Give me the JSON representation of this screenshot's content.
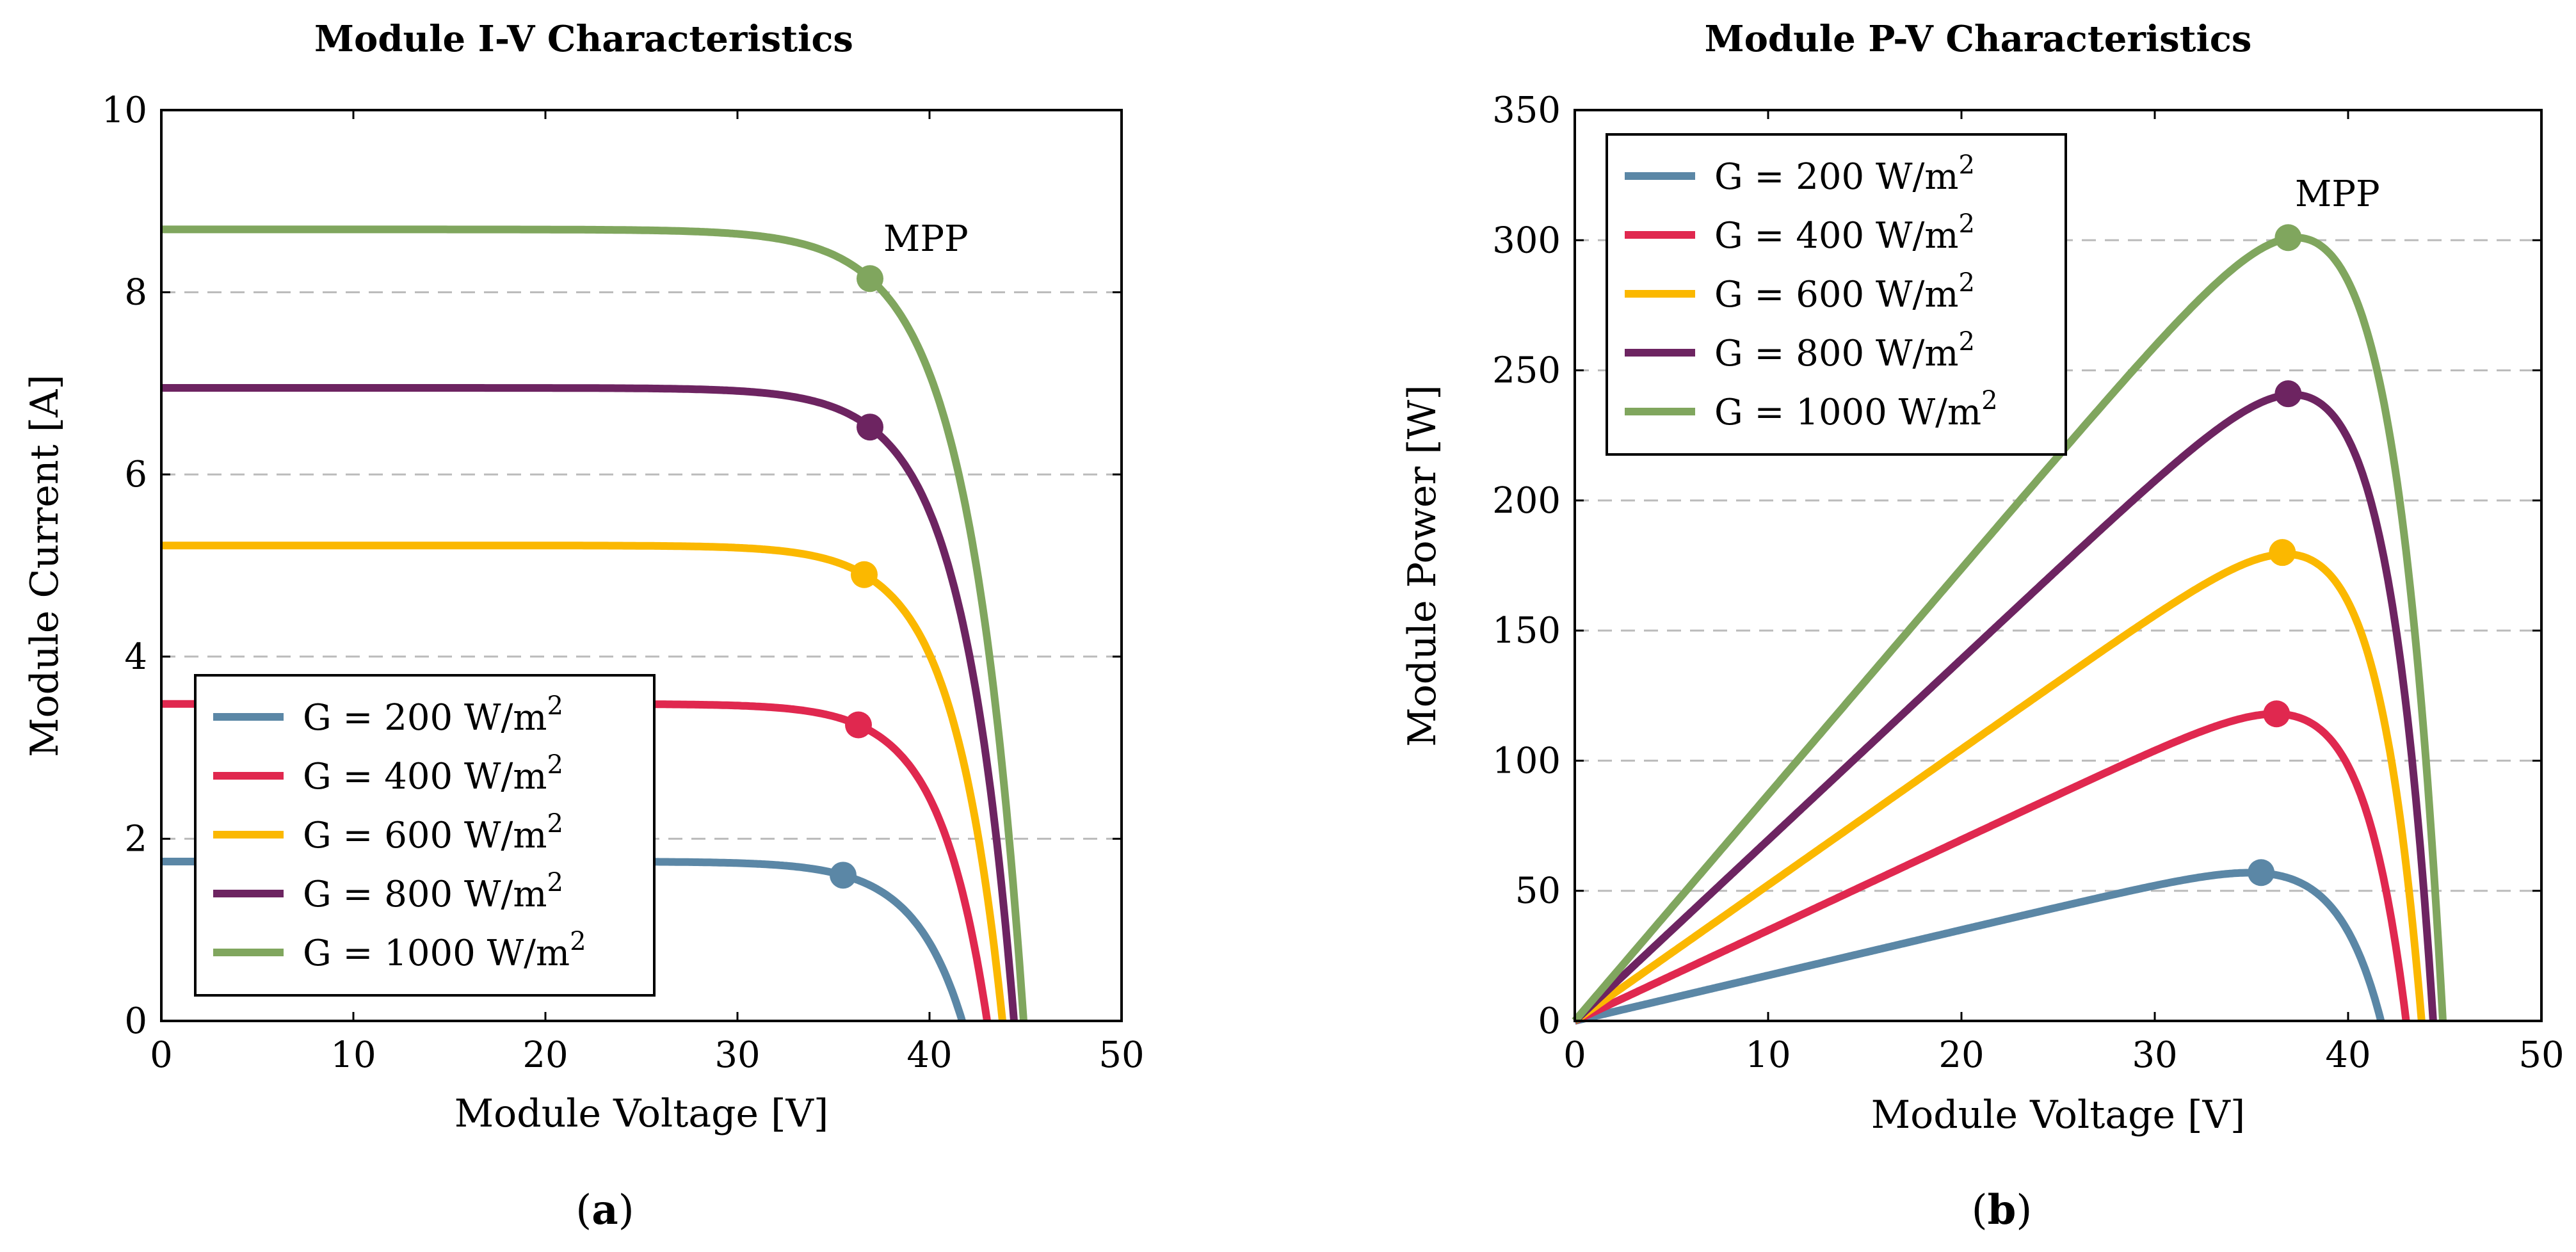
{
  "chart_data": [
    {
      "id": "a",
      "type": "line",
      "title": "Module I-V Characteristics",
      "xlabel": "Module Voltage [V]",
      "ylabel": "Module Current [A]",
      "xlim": [
        0,
        50
      ],
      "ylim": [
        0,
        10
      ],
      "xticks": [
        "0",
        "10",
        "20",
        "30",
        "40",
        "50"
      ],
      "yticks": [
        "0",
        "2",
        "4",
        "6",
        "8",
        "10"
      ],
      "grid": "horizontal-dashed",
      "legend_position": "bottom-left",
      "annotation": "MPP",
      "caption_label": "a",
      "series": [
        {
          "name": "G = 200 W/m",
          "superscript": "2",
          "color": "#5B87A6",
          "isc": 1.75,
          "voc": 41.7,
          "mpp": [
            35.5,
            1.6
          ]
        },
        {
          "name": "G = 400 W/m",
          "superscript": "2",
          "color": "#E0284F",
          "isc": 3.48,
          "voc": 43.0,
          "mpp": [
            36.3,
            3.25
          ]
        },
        {
          "name": "G = 600 W/m",
          "superscript": "2",
          "color": "#FBB800",
          "isc": 5.22,
          "voc": 43.8,
          "mpp": [
            36.6,
            4.9
          ]
        },
        {
          "name": "G = 800 W/m",
          "superscript": "2",
          "color": "#6D2461",
          "isc": 6.95,
          "voc": 44.4,
          "mpp": [
            36.9,
            6.52
          ]
        },
        {
          "name": "G = 1000 W/m",
          "superscript": "2",
          "color": "#80A65E",
          "isc": 8.69,
          "voc": 44.9,
          "mpp": [
            36.9,
            8.15
          ]
        }
      ]
    },
    {
      "id": "b",
      "type": "line",
      "title": "Module P-V Characteristics",
      "xlabel": "Module Voltage [V]",
      "ylabel": "Module Power [W]",
      "xlim": [
        0,
        50
      ],
      "ylim": [
        0,
        350
      ],
      "xticks": [
        "0",
        "10",
        "20",
        "30",
        "40",
        "50"
      ],
      "yticks": [
        "0",
        "50",
        "100",
        "150",
        "200",
        "250",
        "300",
        "350"
      ],
      "grid": "horizontal-dashed",
      "legend_position": "top-left",
      "annotation": "MPP",
      "caption_label": "b",
      "series": [
        {
          "name": "G = 200 W/m",
          "superscript": "2",
          "color": "#5B87A6",
          "isc": 1.75,
          "voc": 41.7,
          "mpp": [
            35.5,
            57
          ]
        },
        {
          "name": "G = 400 W/m",
          "superscript": "2",
          "color": "#E0284F",
          "isc": 3.48,
          "voc": 43.0,
          "mpp": [
            36.3,
            118
          ]
        },
        {
          "name": "G = 600 W/m",
          "superscript": "2",
          "color": "#FBB800",
          "isc": 5.22,
          "voc": 43.8,
          "mpp": [
            36.6,
            180
          ]
        },
        {
          "name": "G = 800 W/m",
          "superscript": "2",
          "color": "#6D2461",
          "isc": 6.95,
          "voc": 44.4,
          "mpp": [
            36.9,
            241
          ]
        },
        {
          "name": "G = 1000 W/m",
          "superscript": "2",
          "color": "#80A65E",
          "isc": 8.69,
          "voc": 44.9,
          "mpp": [
            36.9,
            301
          ]
        }
      ]
    }
  ]
}
